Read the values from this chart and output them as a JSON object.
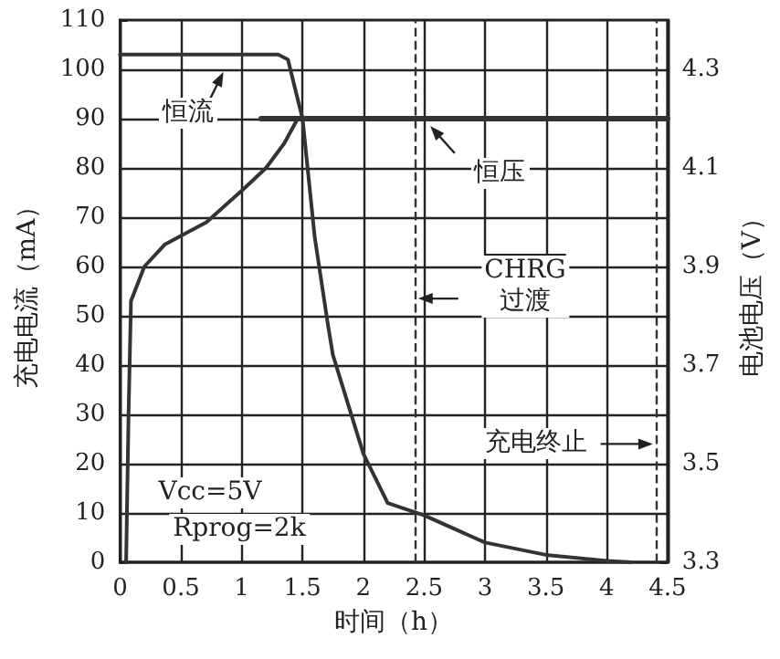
{
  "chart_data": {
    "type": "line",
    "xlabel": "时间（h）",
    "ylabel": "充电电流（mA）",
    "y2label": "电池电压（V）",
    "xlim": [
      0,
      4.5
    ],
    "xticks": [
      0,
      0.5,
      1,
      1.5,
      2,
      2.5,
      3,
      3.5,
      4,
      4.5
    ],
    "ylim": [
      0,
      110
    ],
    "yticks": [
      0,
      10,
      20,
      30,
      40,
      50,
      60,
      70,
      80,
      90,
      100,
      110
    ],
    "y2lim": [
      3.3,
      4.4
    ],
    "y2ticks": [
      3.3,
      3.5,
      3.7,
      3.9,
      4.1,
      4.3
    ],
    "grid": true,
    "marker": "none",
    "line_style": "solid",
    "series": [
      {
        "color": "#333333",
        "x": [
          0,
          0.5,
          1,
          1.3,
          1.38,
          1.45,
          1.5,
          1.6,
          1.71,
          1.75,
          2,
          2.2,
          2.5,
          3,
          3.5,
          4,
          4.2
        ],
        "values": [
          103,
          103,
          103,
          103,
          102,
          95,
          90,
          66,
          48,
          42,
          22,
          12,
          9.5,
          4,
          1.5,
          0.3,
          0
        ]
      },
      {
        "color": "#333333",
        "axis": "y2",
        "x": [
          0.05,
          0.07,
          0.09,
          0.2,
          0.37,
          0.71,
          1.01,
          1.2,
          1.35,
          1.46
        ],
        "values": [
          3.3,
          3.6,
          3.83,
          3.9,
          3.945,
          3.99,
          4.056,
          4.1,
          4.15,
          4.2
        ]
      },
      {
        "color": "#333333",
        "axis": "y2",
        "x": [
          1.16,
          4.5
        ],
        "values": [
          4.2,
          4.2
        ]
      }
    ],
    "ref_lines": [
      {
        "axis": "x",
        "value": 2.42,
        "color": "#333333",
        "line_style": "dashed"
      },
      {
        "axis": "x",
        "value": 4.41,
        "color": "#333333",
        "line_style": "dashed"
      }
    ],
    "annotations": [
      "恒流",
      "恒压",
      "CHRG\n过渡",
      "充电终止",
      "Vcc=5V",
      "Rprog=2k"
    ]
  }
}
